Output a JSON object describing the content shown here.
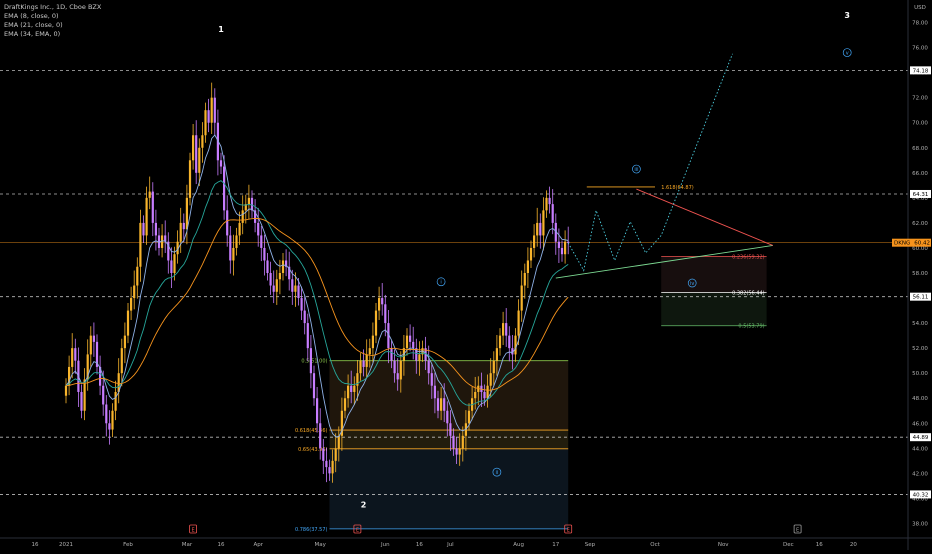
{
  "legend": {
    "title": "DraftKings Inc., 1D, Cboe BZX",
    "ema1": "EMA (8, close, 0)",
    "ema2": "EMA (21, close, 0)",
    "ema3": "EMA (34, EMA, 0)"
  },
  "chart_data": {
    "type": "candlestick",
    "symbol": "DKNG",
    "currency": "USD",
    "ylim": [
      37,
      79
    ],
    "y_ticks": [
      38,
      40,
      42,
      44,
      46,
      48,
      50,
      52,
      54,
      56,
      58,
      60,
      62,
      64,
      66,
      68,
      70,
      72,
      74,
      76,
      78
    ],
    "x_labels": [
      {
        "label": "16",
        "i": -10
      },
      {
        "label": "2021",
        "i": 0
      },
      {
        "label": "Feb",
        "i": 20
      },
      {
        "label": "Mar",
        "i": 39
      },
      {
        "label": "16",
        "i": 50
      },
      {
        "label": "Apr",
        "i": 62
      },
      {
        "label": "May",
        "i": 82
      },
      {
        "label": "Jun",
        "i": 103
      },
      {
        "label": "16",
        "i": 114
      },
      {
        "label": "Jul",
        "i": 124
      },
      {
        "label": "Aug",
        "i": 146
      },
      {
        "label": "17",
        "i": 158
      },
      {
        "label": "Sep",
        "i": 169
      },
      {
        "label": "Oct",
        "i": 190
      },
      {
        "label": "Nov",
        "i": 212
      },
      {
        "label": "Dec",
        "i": 233
      },
      {
        "label": "16",
        "i": 243
      },
      {
        "label": "20",
        "i": 254
      }
    ],
    "candle_series": [
      49,
      50.5,
      52,
      51,
      48.5,
      47,
      49.5,
      51.5,
      53,
      52.5,
      50.5,
      49,
      47.5,
      46,
      45.5,
      47,
      48.5,
      50,
      52,
      53,
      55,
      56,
      57,
      58.5,
      62,
      61,
      64,
      64.5,
      62,
      61,
      60,
      61,
      60.5,
      59,
      58,
      59.5,
      60.5,
      62,
      61.5,
      64,
      67,
      69,
      66,
      68,
      69,
      71,
      70,
      72,
      70,
      67,
      66.5,
      63,
      61,
      59,
      60,
      61,
      62,
      63,
      63.5,
      64,
      63,
      62,
      61,
      60,
      59,
      58,
      57,
      56.5,
      57.5,
      58,
      59,
      58.5,
      57.5,
      56.5,
      57,
      56,
      55,
      54,
      52,
      50,
      48,
      46,
      44,
      43,
      42.5,
      42,
      43,
      44,
      45,
      47,
      48,
      49,
      48.5,
      49,
      50,
      51,
      50.5,
      51.5,
      52,
      53,
      55,
      56,
      55.5,
      54,
      52,
      51,
      50,
      49.5,
      51,
      52,
      53,
      52.5,
      52,
      51,
      51.5,
      52,
      51,
      50,
      49,
      48,
      47,
      48,
      47,
      46,
      45,
      44,
      43.5,
      44,
      45,
      46,
      47,
      48,
      48.5,
      49,
      48.5,
      48,
      49,
      50,
      51,
      52,
      53,
      54,
      53,
      52,
      51.5,
      53,
      55,
      57,
      58,
      59,
      60,
      61,
      62,
      61,
      63,
      64,
      63.5,
      62,
      60.5,
      60,
      59.5,
      60.5,
      60.4
    ],
    "highs_lows": {
      "high_1": 75,
      "low_2": 40.3,
      "wave_iii_high": 64.8,
      "wave_b_low": 42.4
    },
    "ema_lines": [
      {
        "name": "EMA (8, close, 0)",
        "color": "#8fb2e8"
      },
      {
        "name": "EMA (21, close, 0)",
        "color": "#26a69a"
      },
      {
        "name": "EMA (34, EMA, 0)",
        "color": "#f7941d"
      }
    ],
    "horizontal_levels": [
      {
        "label": "74.18",
        "value": 74.18,
        "style": "dashed"
      },
      {
        "label": "64.31",
        "value": 64.31,
        "style": "dashed"
      },
      {
        "label": "56.11",
        "value": 56.11,
        "style": "dashed"
      },
      {
        "label": "44.89",
        "value": 44.89,
        "style": "dashed"
      },
      {
        "label": "40.32",
        "value": 40.32,
        "style": "dashed"
      },
      {
        "label": "",
        "value": 60.42,
        "style": "solid",
        "color": "#f7941d"
      }
    ],
    "last_price": {
      "symbol": "DKNG",
      "value": "60.42",
      "y": 60.42
    },
    "fib_left": [
      {
        "label": "0.5(51.00)",
        "value": 51.0,
        "color": "#8bc34a"
      },
      {
        "label": "0.618(45.46)",
        "value": 45.46,
        "color": "#f9a825"
      },
      {
        "label": "0.65(43.96)",
        "value": 43.96,
        "color": "#f9a825"
      },
      {
        "label": "0.786(37.57)",
        "value": 37.57,
        "color": "#42a5f5"
      }
    ],
    "fib_right": [
      {
        "label": "1.618(64.87)",
        "value": 64.87,
        "color": "#f9a825"
      },
      {
        "label": "0.236(59.32)",
        "value": 59.32,
        "color": "#ef5350"
      },
      {
        "label": "0.382(56.44)",
        "value": 56.44,
        "color": "#ffffff"
      },
      {
        "label": "0.5(53.79)",
        "value": 53.79,
        "color": "#66bb6a"
      }
    ],
    "wave_labels": [
      {
        "text": "1",
        "style": "plain"
      },
      {
        "text": "2",
        "style": "plain"
      },
      {
        "text": "3",
        "style": "plain"
      },
      {
        "text": "i",
        "style": "circle"
      },
      {
        "text": "ii",
        "style": "circle"
      },
      {
        "text": "iii",
        "style": "circle"
      },
      {
        "text": "iv",
        "style": "circle"
      },
      {
        "text": "v",
        "style": "circle"
      }
    ],
    "event_markers": [
      {
        "text": "E",
        "color": "#ef5350"
      },
      {
        "text": "E",
        "color": "#ef5350"
      },
      {
        "text": "E",
        "color": "#ef5350"
      },
      {
        "text": "E",
        "color": "#9e9e9e"
      }
    ],
    "colors": {
      "up_candle": "#f7b42c",
      "down_candle": "#c77dff",
      "background": "#000000",
      "grid": "none"
    }
  }
}
